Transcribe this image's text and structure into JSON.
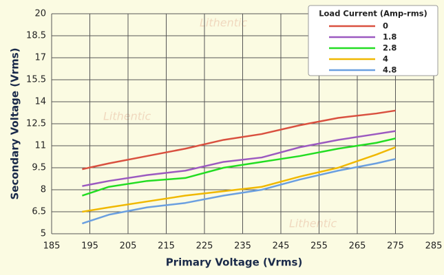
{
  "chart_data": {
    "type": "line",
    "xlabel": "Primary Voltage (Vrms)",
    "ylabel": "Secondary Voltage (Vrms)",
    "watermark": "Lithentic",
    "legend_title": "Load Current (Amp-rms)",
    "legend_position": "upper right",
    "grid": true,
    "x": [
      193,
      200,
      210,
      220,
      230,
      240,
      250,
      260,
      270,
      275
    ],
    "series": [
      {
        "name": "0",
        "color": "#d9503f",
        "values": [
          9.4,
          9.8,
          10.3,
          10.8,
          11.4,
          11.8,
          12.4,
          12.9,
          13.2,
          13.4
        ]
      },
      {
        "name": "1.8",
        "color": "#9b59c0",
        "values": [
          8.25,
          8.6,
          9.0,
          9.3,
          9.9,
          10.2,
          10.9,
          11.4,
          11.8,
          12.0
        ]
      },
      {
        "name": "2.8",
        "color": "#22dd22",
        "values": [
          7.6,
          8.2,
          8.6,
          8.8,
          9.5,
          9.9,
          10.3,
          10.8,
          11.2,
          11.5
        ]
      },
      {
        "name": "4",
        "color": "#f0b800",
        "values": [
          6.5,
          6.8,
          7.2,
          7.6,
          7.9,
          8.2,
          8.9,
          9.5,
          10.4,
          10.9
        ]
      },
      {
        "name": "4.8",
        "color": "#6a9fe0",
        "values": [
          5.7,
          6.3,
          6.8,
          7.1,
          7.6,
          8.0,
          8.7,
          9.3,
          9.8,
          10.1
        ]
      }
    ],
    "xlim": [
      185,
      285
    ],
    "xticks": [
      185,
      195,
      205,
      215,
      225,
      235,
      245,
      255,
      265,
      275,
      285
    ],
    "ylim": [
      5,
      20
    ],
    "yticks": [
      5,
      6.5,
      8,
      9.5,
      11,
      12.5,
      14,
      15.5,
      17,
      18.5,
      20
    ]
  }
}
